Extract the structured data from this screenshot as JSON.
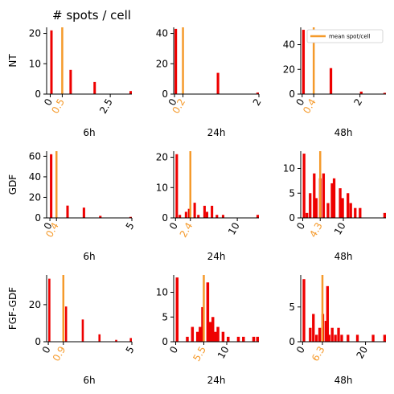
{
  "figure_title": "# spots / cell",
  "legend": {
    "label": "mean spot/cell",
    "color": "#f59a2b",
    "placement": "top-right of top-right panel"
  },
  "colors": {
    "bar": "#ee0000",
    "mean": "#f59a2b",
    "axis": "#000000"
  },
  "row_labels": [
    "NT",
    "GDF",
    "FGF-GDF"
  ],
  "col_labels": [
    "6h",
    "24h",
    "48h"
  ],
  "chart_data": [
    {
      "type": "bar",
      "row": "NT",
      "time": "6h",
      "xlim": [
        -0.15,
        3.4
      ],
      "ylim": [
        0,
        22
      ],
      "yticks": [
        0,
        10,
        20
      ],
      "xticks": [
        {
          "v": 0,
          "t": "0"
        },
        {
          "v": 0.5,
          "t": "0.5",
          "mean": true
        },
        {
          "v": 2.5,
          "t": "2.5"
        }
      ],
      "mean": 0.5,
      "bin_width": 0.1,
      "bars": [
        [
          0,
          21
        ],
        [
          0.8,
          8
        ],
        [
          1.8,
          4
        ],
        [
          3.3,
          1
        ]
      ]
    },
    {
      "type": "bar",
      "row": "NT",
      "time": "24h",
      "xlim": [
        -0.02,
        2.0
      ],
      "ylim": [
        0,
        44
      ],
      "yticks": [
        0,
        20,
        40
      ],
      "xticks": [
        {
          "v": 0,
          "t": "0"
        },
        {
          "v": 0.2,
          "t": "0.2",
          "mean": true
        },
        {
          "v": 2,
          "t": "2"
        }
      ],
      "mean": 0.2,
      "bin_width": 0.06,
      "bars": [
        [
          0,
          43
        ],
        [
          1.0,
          14
        ],
        [
          2.0,
          1
        ]
      ]
    },
    {
      "type": "bar",
      "row": "NT",
      "time": "48h",
      "xlim": [
        -0.05,
        2.9
      ],
      "ylim": [
        0,
        54
      ],
      "yticks": [
        0,
        20,
        40
      ],
      "xticks": [
        {
          "v": 0,
          "t": "0"
        },
        {
          "v": 0.4,
          "t": "0.4",
          "mean": true
        },
        {
          "v": 2,
          "t": "2"
        }
      ],
      "mean": 0.4,
      "bin_width": 0.09,
      "bars": [
        [
          0,
          52
        ],
        [
          0.95,
          21
        ],
        [
          2.0,
          2
        ],
        [
          2.9,
          1
        ]
      ]
    },
    {
      "type": "bar",
      "row": "GDF",
      "time": "6h",
      "xlim": [
        -0.2,
        5.0
      ],
      "ylim": [
        0,
        65
      ],
      "yticks": [
        0,
        20,
        40,
        60
      ],
      "xticks": [
        {
          "v": 0,
          "t": "0"
        },
        {
          "v": 0.4,
          "t": "0.4",
          "mean": true
        },
        {
          "v": 5,
          "t": "5"
        }
      ],
      "mean": 0.4,
      "bin_width": 0.15,
      "bars": [
        [
          0,
          62
        ],
        [
          1.0,
          12
        ],
        [
          2.0,
          10
        ],
        [
          3.0,
          2
        ],
        [
          5.0,
          1
        ]
      ]
    },
    {
      "type": "bar",
      "row": "GDF",
      "time": "24h",
      "xlim": [
        -0.3,
        13.5
      ],
      "ylim": [
        0,
        22
      ],
      "yticks": [
        0,
        10,
        20
      ],
      "xticks": [
        {
          "v": 0,
          "t": "0"
        },
        {
          "v": 2.4,
          "t": "2.4",
          "mean": true
        },
        {
          "v": 10,
          "t": "10"
        }
      ],
      "mean": 2.4,
      "bin_width": 0.4,
      "bars": [
        [
          0,
          21
        ],
        [
          0.5,
          1
        ],
        [
          1.5,
          2
        ],
        [
          2.0,
          3
        ],
        [
          2.9,
          5
        ],
        [
          3.5,
          1
        ],
        [
          4.5,
          4
        ],
        [
          4.9,
          2
        ],
        [
          5.7,
          4
        ],
        [
          6.5,
          1
        ],
        [
          7.5,
          1
        ],
        [
          13.5,
          1
        ]
      ]
    },
    {
      "type": "bar",
      "row": "GDF",
      "time": "48h",
      "xlim": [
        -0.5,
        20.5
      ],
      "ylim": [
        0,
        13.5
      ],
      "yticks": [
        0,
        5,
        10
      ],
      "xticks": [
        {
          "v": 0,
          "t": "0"
        },
        {
          "v": 4.3,
          "t": "4.3",
          "mean": true
        },
        {
          "v": 10,
          "t": "10"
        }
      ],
      "mean": 4.3,
      "bin_width": 0.65,
      "bars": [
        [
          0,
          13
        ],
        [
          0.7,
          1
        ],
        [
          1.5,
          5
        ],
        [
          2.5,
          9
        ],
        [
          3.0,
          4
        ],
        [
          4.0,
          8
        ],
        [
          4.8,
          9
        ],
        [
          5.9,
          3
        ],
        [
          6.9,
          7
        ],
        [
          7.4,
          8
        ],
        [
          8.9,
          6
        ],
        [
          9.5,
          4
        ],
        [
          10.8,
          5
        ],
        [
          11.5,
          3
        ],
        [
          12.6,
          2
        ],
        [
          13.8,
          2
        ],
        [
          20.5,
          1
        ]
      ]
    },
    {
      "type": "bar",
      "row": "FGF-GDF",
      "time": "6h",
      "xlim": [
        -0.1,
        5.0
      ],
      "ylim": [
        0,
        36
      ],
      "yticks": [
        0,
        20
      ],
      "xticks": [
        {
          "v": 0,
          "t": "0"
        },
        {
          "v": 0.9,
          "t": "0.9",
          "mean": true
        },
        {
          "v": 5,
          "t": "5"
        }
      ],
      "mean": 0.9,
      "bin_width": 0.12,
      "bars": [
        [
          0,
          34
        ],
        [
          1.0,
          19
        ],
        [
          2.0,
          12
        ],
        [
          3.0,
          4
        ],
        [
          4.0,
          1
        ],
        [
          5.0,
          2
        ]
      ]
    },
    {
      "type": "bar",
      "row": "FGF-GDF",
      "time": "24h",
      "xlim": [
        -0.4,
        16.3
      ],
      "ylim": [
        0,
        13.5
      ],
      "yticks": [
        0,
        5,
        10
      ],
      "xticks": [
        {
          "v": 0,
          "t": "0"
        },
        {
          "v": 5.5,
          "t": "5.5",
          "mean": true
        },
        {
          "v": 10,
          "t": "10"
        }
      ],
      "mean": 5.5,
      "bin_width": 0.55,
      "bars": [
        [
          0,
          13
        ],
        [
          2.0,
          1
        ],
        [
          3.0,
          3
        ],
        [
          4.0,
          2
        ],
        [
          4.5,
          3
        ],
        [
          5.0,
          7
        ],
        [
          6.0,
          12
        ],
        [
          6.5,
          4
        ],
        [
          7.0,
          5
        ],
        [
          7.5,
          2
        ],
        [
          8.0,
          3
        ],
        [
          9.0,
          2
        ],
        [
          10.0,
          1
        ],
        [
          12.0,
          1
        ],
        [
          13.0,
          1
        ],
        [
          15.0,
          1
        ],
        [
          16.0,
          1
        ]
      ]
    },
    {
      "type": "bar",
      "row": "FGF-GDF",
      "time": "48h",
      "xlim": [
        -0.6,
        26.5
      ],
      "ylim": [
        0,
        9.6
      ],
      "yticks": [
        0,
        5
      ],
      "xticks": [
        {
          "v": 0,
          "t": "0"
        },
        {
          "v": 6.3,
          "t": "6.3",
          "mean": true
        },
        {
          "v": 20,
          "t": "20"
        }
      ],
      "mean": 6.3,
      "bin_width": 0.85,
      "bars": [
        [
          0,
          9
        ],
        [
          2.0,
          2
        ],
        [
          3.0,
          4
        ],
        [
          4.0,
          1
        ],
        [
          5.0,
          2
        ],
        [
          6.0,
          4
        ],
        [
          7.0,
          3
        ],
        [
          7.5,
          8
        ],
        [
          8.0,
          1
        ],
        [
          9.0,
          2
        ],
        [
          10.0,
          1
        ],
        [
          11.0,
          2
        ],
        [
          12.0,
          1
        ],
        [
          14.0,
          1
        ],
        [
          17.0,
          1
        ],
        [
          22.0,
          1
        ],
        [
          26.0,
          1
        ]
      ]
    }
  ]
}
